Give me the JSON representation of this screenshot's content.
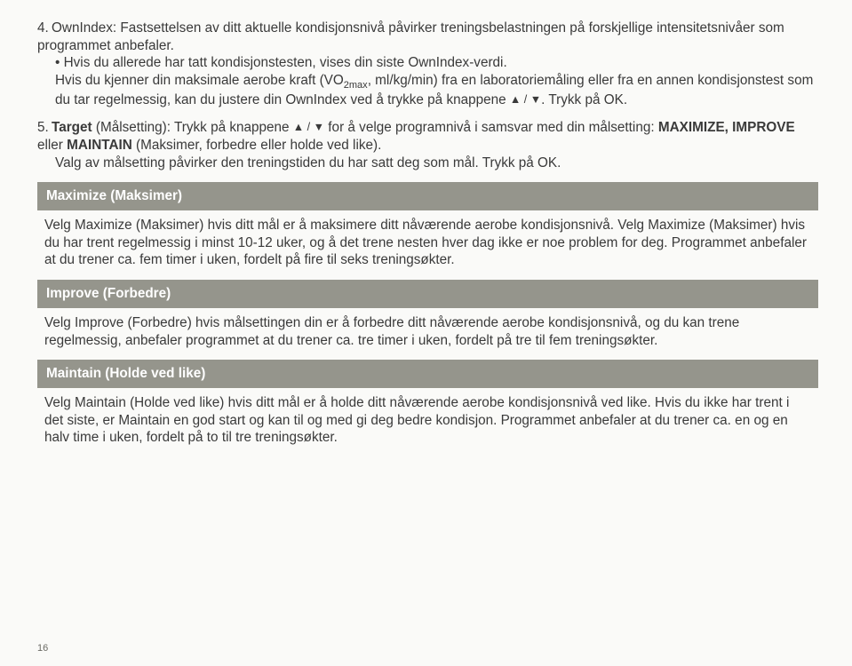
{
  "item4": {
    "num": "4.",
    "line1": "OwnIndex: Fastsettelsen av ditt aktuelle kondisjonsnivå påvirker treningsbelastningen på forskjellige intensitetsnivåer som programmet anbefaler.",
    "bullet": "• Hvis du allerede har tatt kondisjonstesten, vises din siste OwnIndex-verdi.",
    "line2a": "Hvis du kjenner din maksimale aerobe kraft (VO",
    "sub": "2max",
    "line2b": ", ml/kg/min) fra en laboratoriemåling eller fra en annen kondisjonstest som du tar regelmessig, kan du justere din OwnIndex ved å trykke på knappene ",
    "tri": "▲ / ▼",
    "line2c": ". Trykk på OK."
  },
  "item5": {
    "num": "5.",
    "bold1": "Target",
    "t1": " (Målsetting): Trykk på knappene ",
    "tri": "▲ / ▼",
    "t2": " for å velge programnivå i samsvar med din målsetting: ",
    "bold2": "MAXIMIZE, IMPROVE",
    "t3": " eller ",
    "bold3": "MAINTAIN",
    "t4": " (Maksimer, forbedre eller holde ved like).",
    "t5": "Valg av målsetting påvirker den treningstiden du har satt deg som mål. Trykk på OK."
  },
  "sections": {
    "maximize": {
      "header": "Maximize (Maksimer)",
      "body": "Velg Maximize (Maksimer) hvis ditt mål er å maksimere ditt nåværende aerobe kondisjonsnivå. Velg Maximize (Maksimer) hvis du har trent regelmessig i minst 10-12 uker, og å det trene nesten hver dag ikke er noe problem for deg. Programmet anbefaler at du trener ca. fem timer i uken, fordelt på fire til seks treningsøkter."
    },
    "improve": {
      "header": "Improve (Forbedre)",
      "body": "Velg Improve (Forbedre) hvis målsettingen din er å forbedre ditt nåværende aerobe kondisjonsnivå, og du kan trene regelmessig,  anbefaler programmet at du trener ca. tre timer i uken, fordelt på tre til fem treningsøkter."
    },
    "maintain": {
      "header": "Maintain (Holde ved like)",
      "body": "Velg Maintain (Holde ved like) hvis ditt mål er å holde ditt nåværende aerobe kondisjonsnivå ved like. Hvis du ikke har trent i det siste, er Maintain en god start og kan til og med gi deg bedre kondisjon. Programmet anbefaler at du trener ca. en og en halv time i uken, fordelt på to til tre treningsøkter."
    }
  },
  "pagenum": "16"
}
